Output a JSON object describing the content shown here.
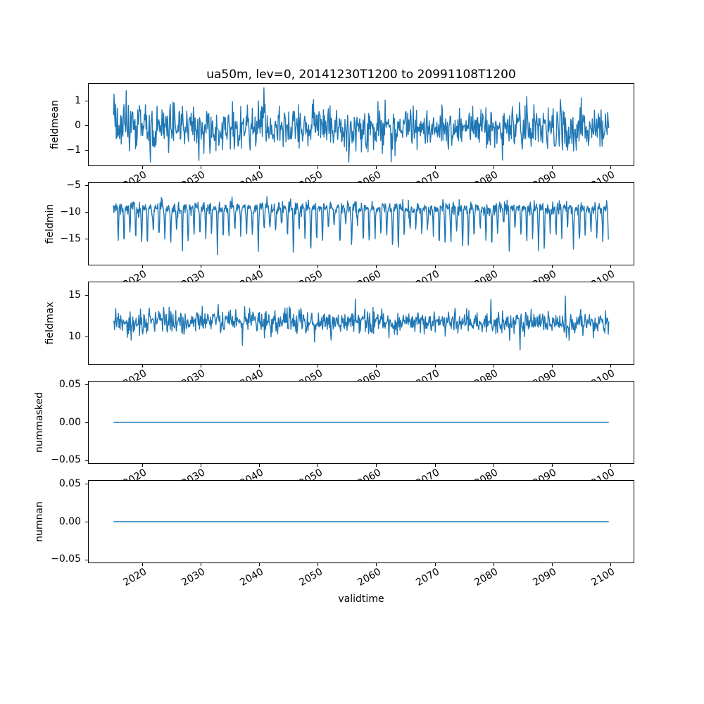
{
  "figure": {
    "title": "ua50m, lev=0, 20141230T1200 to 20991108T1200",
    "xlabel": "validtime",
    "line_color": "#1f77b4",
    "background_color": "#ffffff",
    "text_color": "#000000",
    "num_subplots": 5
  },
  "chart_data": [
    {
      "type": "line",
      "ylabel": "fieldmean",
      "x_start": 2015.0,
      "x_end": 2099.85,
      "xlim": [
        2010.75,
        2104.1
      ],
      "ylim": [
        -1.66,
        1.72
      ],
      "xticks": [
        2020,
        2030,
        2040,
        2050,
        2060,
        2070,
        2080,
        2090,
        2100
      ],
      "xtick_labels": [
        "2020",
        "2030",
        "2040",
        "2050",
        "2060",
        "2070",
        "2080",
        "2090",
        "2100"
      ],
      "xtick_labels_clipped_by_next_subplot": true,
      "yticks": [
        1,
        0,
        -1
      ],
      "ytick_labels": [
        "1",
        "0",
        "−1"
      ],
      "grid": false,
      "legend": null,
      "series_summary": {
        "mean": -0.1,
        "std": 0.45,
        "min": -1.52,
        "max": 1.55,
        "pattern": "dense white noise"
      },
      "series_model": {
        "kind": "noise",
        "n": 900,
        "seed": 11,
        "base": -0.1,
        "sd": 0.45,
        "spikes": {
          "prob": 0.008,
          "min": 0.45,
          "max": 1.05,
          "sign": 0
        },
        "clip": [
          -1.52,
          1.55
        ]
      }
    },
    {
      "type": "line",
      "ylabel": "fieldmin",
      "x_start": 2015.0,
      "x_end": 2099.85,
      "xlim": [
        2010.75,
        2104.1
      ],
      "ylim": [
        -20.0,
        -4.47
      ],
      "xticks": [
        2020,
        2030,
        2040,
        2050,
        2060,
        2070,
        2080,
        2090,
        2100
      ],
      "xtick_labels": [
        "2020",
        "2030",
        "2040",
        "2050",
        "2060",
        "2070",
        "2080",
        "2090",
        "2100"
      ],
      "xtick_labels_clipped_by_next_subplot": true,
      "yticks": [
        -5,
        -10,
        -15
      ],
      "ytick_labels": [
        "−5",
        "−10",
        "−15"
      ],
      "grid": false,
      "legend": null,
      "series_summary": {
        "baseline_mean": -9.2,
        "std": 0.62,
        "annual_dip_depth": [
          3.0,
          8.3
        ],
        "min": -19.3,
        "max": -5.25,
        "pattern": "noisy baseline near -9 with regular deep annual dips to -13..-19"
      },
      "series_model": {
        "kind": "noise",
        "n": 1150,
        "seed": 23,
        "base": -9.2,
        "sd": 0.62,
        "dip": {
          "phase": 0.8,
          "width": 0.07,
          "depth_min": 3.0,
          "depth_max": 8.3
        },
        "spikes": {
          "prob": 0.004,
          "min": 0.8,
          "max": 2.8,
          "sign": 1
        },
        "clip": [
          -19.3,
          -5.25
        ]
      }
    },
    {
      "type": "line",
      "ylabel": "fieldmax",
      "x_start": 2015.0,
      "x_end": 2099.85,
      "xlim": [
        2010.75,
        2104.1
      ],
      "ylim": [
        6.61,
        16.61
      ],
      "xticks": [
        2020,
        2030,
        2040,
        2050,
        2060,
        2070,
        2080,
        2090,
        2100
      ],
      "xtick_labels": [
        "2020",
        "2030",
        "2040",
        "2050",
        "2060",
        "2070",
        "2080",
        "2090",
        "2100"
      ],
      "xtick_labels_clipped_by_next_subplot": true,
      "yticks": [
        15,
        10
      ],
      "ytick_labels": [
        "15",
        "10"
      ],
      "grid": false,
      "legend": null,
      "series_summary": {
        "mean": 11.75,
        "std": 0.72,
        "min": 7.1,
        "max": 16.2,
        "pattern": "dense noise around 12 with occasional spikes to 16 and dips to 7"
      },
      "series_model": {
        "kind": "noise",
        "n": 900,
        "seed": 37,
        "base": 11.75,
        "sd": 0.72,
        "spikes": {
          "prob": 0.012,
          "min": 0.9,
          "max": 3.2,
          "sign": 0
        },
        "clip": [
          7.1,
          16.2
        ]
      }
    },
    {
      "type": "line",
      "ylabel": "nummasked",
      "x_start": 2015.0,
      "x_end": 2099.85,
      "xlim": [
        2010.75,
        2104.1
      ],
      "ylim": [
        -0.055,
        0.055
      ],
      "xticks": [
        2020,
        2030,
        2040,
        2050,
        2060,
        2070,
        2080,
        2090,
        2100
      ],
      "xtick_labels": [
        "2020",
        "2030",
        "2040",
        "2050",
        "2060",
        "2070",
        "2080",
        "2090",
        "2100"
      ],
      "xtick_labels_clipped_by_next_subplot": true,
      "yticks": [
        0.05,
        0.0,
        -0.05
      ],
      "ytick_labels": [
        "0.05",
        "0.00",
        "−0.05"
      ],
      "grid": false,
      "legend": null,
      "series_summary": {
        "constant_value": 0,
        "pattern": "flat line at 0"
      },
      "series_model": {
        "kind": "constant",
        "n": 2,
        "value": 0
      }
    },
    {
      "type": "line",
      "ylabel": "numnan",
      "x_start": 2015.0,
      "x_end": 2099.85,
      "xlim": [
        2010.75,
        2104.1
      ],
      "ylim": [
        -0.055,
        0.055
      ],
      "xticks": [
        2020,
        2030,
        2040,
        2050,
        2060,
        2070,
        2080,
        2090,
        2100
      ],
      "xtick_labels": [
        "2020",
        "2030",
        "2040",
        "2050",
        "2060",
        "2070",
        "2080",
        "2090",
        "2100"
      ],
      "xtick_labels_clipped_by_next_subplot": false,
      "yticks": [
        0.05,
        0.0,
        -0.05
      ],
      "ytick_labels": [
        "0.05",
        "0.00",
        "−0.05"
      ],
      "grid": false,
      "legend": null,
      "series_summary": {
        "constant_value": 0,
        "pattern": "flat line at 0"
      },
      "series_model": {
        "kind": "constant",
        "n": 2,
        "value": 0
      }
    }
  ]
}
